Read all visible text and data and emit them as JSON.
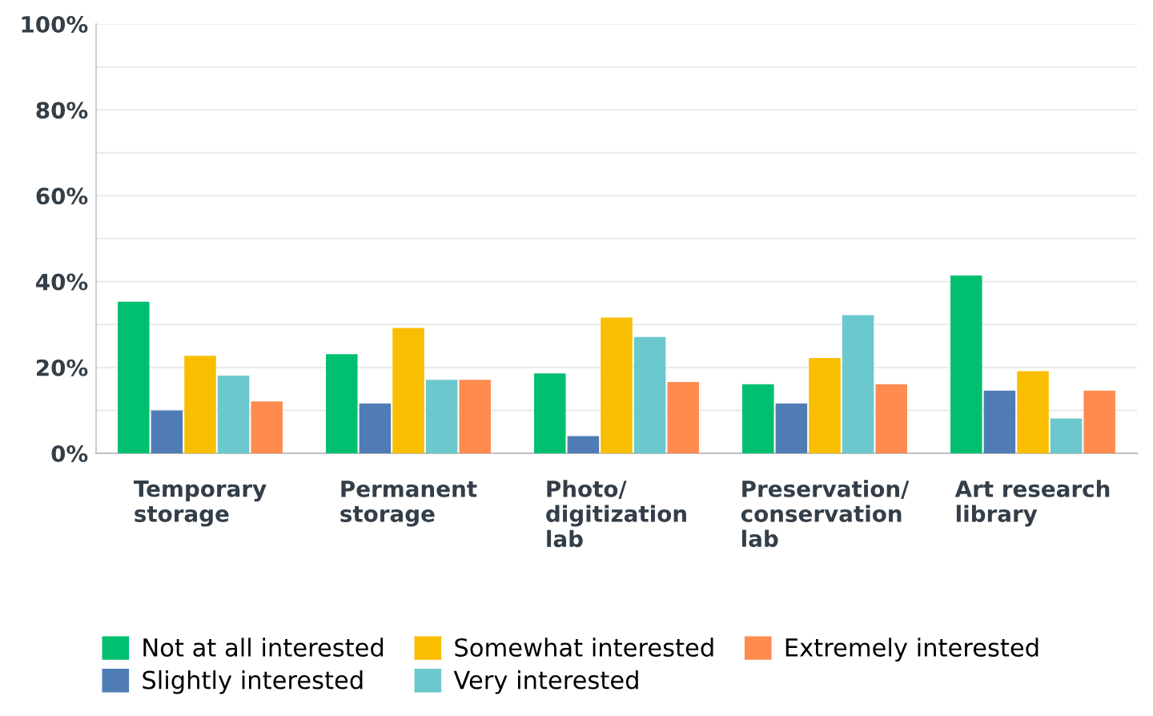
{
  "chart_data": {
    "type": "bar",
    "categories": [
      "Temporary\nstorage",
      "Permanent\nstorage",
      "Photo/\ndigitization\nlab",
      "Preservation/\nconservation\nlab",
      "Art research\nlibrary"
    ],
    "series": [
      {
        "name": "Not at all interested",
        "color": "#00bf6f",
        "values": [
          35.3,
          23.1,
          18.6,
          16.1,
          41.4
        ]
      },
      {
        "name": "Slightly interested",
        "color": "#507cb6",
        "values": [
          10,
          11.6,
          4,
          11.6,
          14.6
        ]
      },
      {
        "name": "Somewhat interested",
        "color": "#f9be00",
        "values": [
          22.7,
          29.2,
          31.6,
          22.2,
          19.1
        ]
      },
      {
        "name": "Very interested",
        "color": "#6bc8cd",
        "values": [
          18.1,
          17.1,
          27.1,
          32.2,
          8.1
        ]
      },
      {
        "name": "Extremely interested",
        "color": "#ff8b4f",
        "values": [
          12.1,
          17.1,
          16.6,
          16.1,
          14.6
        ]
      }
    ],
    "ylim": [
      0,
      100
    ],
    "yticks": [
      {
        "value": 0,
        "label": "0%"
      },
      {
        "value": 10,
        "label": null
      },
      {
        "value": 20,
        "label": "20%"
      },
      {
        "value": 30,
        "label": null
      },
      {
        "value": 40,
        "label": "40%"
      },
      {
        "value": 50,
        "label": null
      },
      {
        "value": 60,
        "label": "60%"
      },
      {
        "value": 70,
        "label": null
      },
      {
        "value": 80,
        "label": "80%"
      },
      {
        "value": 90,
        "label": null
      },
      {
        "value": 100,
        "label": "100%"
      }
    ],
    "grid": "y",
    "legend": "bottom"
  }
}
